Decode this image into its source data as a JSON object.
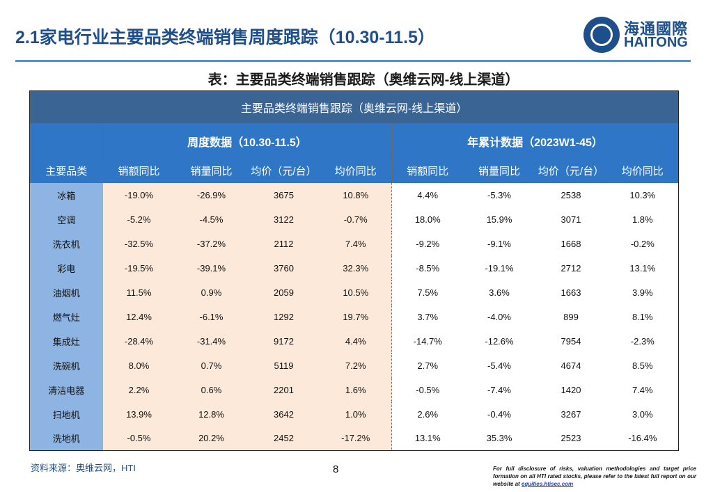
{
  "header": {
    "title": "2.1家电行业主要品类终端销售周度跟踪（10.30-11.5）",
    "logo_cn": "海通國際",
    "logo_en": "HAITONG"
  },
  "subtitle": "表：主要品类终端销售跟踪（奥维云网-线上渠道）",
  "table": {
    "title": "主要品类终端销售跟踪（奥维云网-线上渠道）",
    "group_weekly": "周度数据（10.30-11.5）",
    "group_ytd": "年累计数据（2023W1-45）",
    "columns": [
      "主要品类",
      "销额同比",
      "销量同比",
      "均价（元/台）",
      "均价同比",
      "销额同比",
      "销量同比",
      "均价（元/台）",
      "均价同比"
    ],
    "rows": [
      [
        "冰箱",
        "-19.0%",
        "-26.9%",
        "3675",
        "10.8%",
        "4.4%",
        "-5.3%",
        "2538",
        "10.3%"
      ],
      [
        "空调",
        "-5.2%",
        "-4.5%",
        "3122",
        "-0.7%",
        "18.0%",
        "15.9%",
        "3071",
        "1.8%"
      ],
      [
        "洗衣机",
        "-32.5%",
        "-37.2%",
        "2112",
        "7.4%",
        "-9.2%",
        "-9.1%",
        "1668",
        "-0.2%"
      ],
      [
        "彩电",
        "-19.5%",
        "-39.1%",
        "3760",
        "32.3%",
        "-8.5%",
        "-19.1%",
        "2712",
        "13.1%"
      ],
      [
        "油烟机",
        "11.5%",
        "0.9%",
        "2059",
        "10.5%",
        "7.5%",
        "3.6%",
        "1663",
        "3.9%"
      ],
      [
        "燃气灶",
        "12.4%",
        "-6.1%",
        "1292",
        "19.7%",
        "3.7%",
        "-4.0%",
        "899",
        "8.1%"
      ],
      [
        "集成灶",
        "-28.4%",
        "-31.4%",
        "9172",
        "4.4%",
        "-14.7%",
        "-12.6%",
        "7954",
        "-2.3%"
      ],
      [
        "洗碗机",
        "8.0%",
        "0.7%",
        "5119",
        "7.2%",
        "2.7%",
        "-5.4%",
        "4674",
        "8.5%"
      ],
      [
        "清洁电器",
        "2.2%",
        "0.6%",
        "2201",
        "1.6%",
        "-0.5%",
        "-7.4%",
        "1420",
        "7.4%"
      ],
      [
        "扫地机",
        "13.9%",
        "12.8%",
        "3642",
        "1.0%",
        "2.6%",
        "-0.4%",
        "3267",
        "3.0%"
      ],
      [
        "洗地机",
        "-0.5%",
        "20.2%",
        "2452",
        "-17.2%",
        "13.1%",
        "35.3%",
        "2523",
        "-16.4%"
      ]
    ]
  },
  "footer": {
    "source": "资料来源：奥维云网，HTI",
    "page": "8",
    "disclaimer": "For full disclosure of risks, valuation methodologies and target price formation on all HTI rated stocks, please refer to the latest full report on our website at ",
    "link": "equities.htisec.com"
  },
  "colors": {
    "brand": "#1f4e8c",
    "header_dark": "#3a6494",
    "header_blue": "#2f77c6",
    "category_bg": "#8db4e2",
    "weekly_bg": "#fde9d9"
  }
}
